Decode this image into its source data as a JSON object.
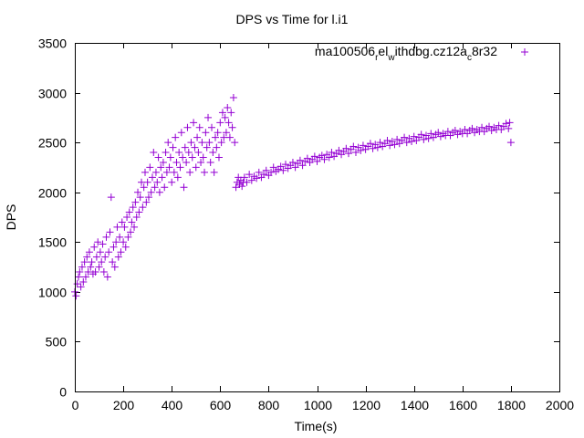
{
  "chart_data": {
    "type": "scatter",
    "title": "DPS vs Time for l.i1",
    "xlabel": "Time(s)",
    "ylabel": "DPS",
    "xlim": [
      0,
      2000
    ],
    "ylim": [
      0,
      3500
    ],
    "xticks": [
      0,
      200,
      400,
      600,
      800,
      1000,
      1200,
      1400,
      1600,
      1800,
      2000
    ],
    "yticks": [
      0,
      500,
      1000,
      1500,
      2000,
      2500,
      3000,
      3500
    ],
    "grid": false,
    "legend_position": "top-right",
    "series": [
      {
        "name": "ma100506",
        "name_parts": {
          "base": "ma100506",
          "sub1": "r",
          "mid1": "el",
          "sub2": "w",
          "mid2": "ithdbg.cz12a",
          "sub3": "c",
          "tail": "8r32"
        },
        "color": "#9400d3",
        "marker": "plus",
        "points": [
          [
            0,
            1000
          ],
          [
            5,
            960
          ],
          [
            10,
            1080
          ],
          [
            15,
            1150
          ],
          [
            20,
            1200
          ],
          [
            25,
            1050
          ],
          [
            30,
            1250
          ],
          [
            35,
            1100
          ],
          [
            40,
            1300
          ],
          [
            45,
            1150
          ],
          [
            50,
            1350
          ],
          [
            55,
            1200
          ],
          [
            60,
            1400
          ],
          [
            65,
            1250
          ],
          [
            70,
            1300
          ],
          [
            75,
            1180
          ],
          [
            80,
            1450
          ],
          [
            85,
            1200
          ],
          [
            90,
            1350
          ],
          [
            95,
            1500
          ],
          [
            100,
            1250
          ],
          [
            105,
            1400
          ],
          [
            110,
            1300
          ],
          [
            115,
            1480
          ],
          [
            120,
            1200
          ],
          [
            125,
            1350
          ],
          [
            130,
            1550
          ],
          [
            135,
            1150
          ],
          [
            140,
            1400
          ],
          [
            145,
            1600
          ],
          [
            150,
            1950
          ],
          [
            155,
            1300
          ],
          [
            160,
            1450
          ],
          [
            165,
            1250
          ],
          [
            170,
            1500
          ],
          [
            175,
            1650
          ],
          [
            180,
            1350
          ],
          [
            185,
            1550
          ],
          [
            190,
            1400
          ],
          [
            195,
            1700
          ],
          [
            200,
            1500
          ],
          [
            205,
            1650
          ],
          [
            210,
            1450
          ],
          [
            215,
            1750
          ],
          [
            220,
            1550
          ],
          [
            225,
            1800
          ],
          [
            230,
            1600
          ],
          [
            235,
            1700
          ],
          [
            240,
            1850
          ],
          [
            245,
            1650
          ],
          [
            250,
            1900
          ],
          [
            255,
            1750
          ],
          [
            260,
            2000
          ],
          [
            265,
            1800
          ],
          [
            270,
            1950
          ],
          [
            275,
            2100
          ],
          [
            280,
            1850
          ],
          [
            285,
            2050
          ],
          [
            290,
            2200
          ],
          [
            295,
            1900
          ],
          [
            300,
            2100
          ],
          [
            305,
            1950
          ],
          [
            310,
            2250
          ],
          [
            315,
            2000
          ],
          [
            320,
            2150
          ],
          [
            325,
            2400
          ],
          [
            330,
            2050
          ],
          [
            335,
            2200
          ],
          [
            340,
            2100
          ],
          [
            345,
            2350
          ],
          [
            350,
            2000
          ],
          [
            355,
            2250
          ],
          [
            360,
            2150
          ],
          [
            365,
            2300
          ],
          [
            370,
            2050
          ],
          [
            375,
            2400
          ],
          [
            380,
            2200
          ],
          [
            385,
            2500
          ],
          [
            390,
            2250
          ],
          [
            395,
            2350
          ],
          [
            400,
            2100
          ],
          [
            405,
            2450
          ],
          [
            410,
            2200
          ],
          [
            415,
            2550
          ],
          [
            420,
            2300
          ],
          [
            425,
            2150
          ],
          [
            430,
            2400
          ],
          [
            435,
            2250
          ],
          [
            440,
            2600
          ],
          [
            445,
            2350
          ],
          [
            450,
            2050
          ],
          [
            455,
            2450
          ],
          [
            460,
            2300
          ],
          [
            465,
            2650
          ],
          [
            470,
            2400
          ],
          [
            475,
            2200
          ],
          [
            480,
            2500
          ],
          [
            485,
            2350
          ],
          [
            490,
            2700
          ],
          [
            495,
            2450
          ],
          [
            500,
            2250
          ],
          [
            505,
            2550
          ],
          [
            510,
            2400
          ],
          [
            515,
            2650
          ],
          [
            520,
            2300
          ],
          [
            525,
            2500
          ],
          [
            530,
            2350
          ],
          [
            535,
            2200
          ],
          [
            540,
            2600
          ],
          [
            545,
            2450
          ],
          [
            550,
            2750
          ],
          [
            555,
            2500
          ],
          [
            560,
            2300
          ],
          [
            565,
            2650
          ],
          [
            570,
            2400
          ],
          [
            575,
            2200
          ],
          [
            580,
            2550
          ],
          [
            585,
            2450
          ],
          [
            590,
            2600
          ],
          [
            595,
            2350
          ],
          [
            600,
            2700
          ],
          [
            605,
            2500
          ],
          [
            610,
            2800
          ],
          [
            615,
            2550
          ],
          [
            620,
            2750
          ],
          [
            625,
            2600
          ],
          [
            630,
            2850
          ],
          [
            635,
            2700
          ],
          [
            640,
            2550
          ],
          [
            645,
            2800
          ],
          [
            650,
            2650
          ],
          [
            655,
            2950
          ],
          [
            660,
            2500
          ],
          [
            665,
            2050
          ],
          [
            670,
            2100
          ],
          [
            675,
            2150
          ],
          [
            680,
            2080
          ],
          [
            685,
            2120
          ],
          [
            690,
            2060
          ],
          [
            695,
            2100
          ],
          [
            700,
            2150
          ],
          [
            710,
            2100
          ],
          [
            720,
            2180
          ],
          [
            730,
            2120
          ],
          [
            740,
            2160
          ],
          [
            750,
            2140
          ],
          [
            760,
            2200
          ],
          [
            770,
            2150
          ],
          [
            780,
            2180
          ],
          [
            790,
            2220
          ],
          [
            800,
            2170
          ],
          [
            810,
            2200
          ],
          [
            820,
            2250
          ],
          [
            830,
            2210
          ],
          [
            840,
            2230
          ],
          [
            850,
            2260
          ],
          [
            860,
            2220
          ],
          [
            870,
            2280
          ],
          [
            880,
            2240
          ],
          [
            890,
            2270
          ],
          [
            900,
            2300
          ],
          [
            910,
            2250
          ],
          [
            920,
            2290
          ],
          [
            930,
            2320
          ],
          [
            940,
            2270
          ],
          [
            950,
            2310
          ],
          [
            960,
            2340
          ],
          [
            970,
            2300
          ],
          [
            980,
            2330
          ],
          [
            990,
            2360
          ],
          [
            1000,
            2310
          ],
          [
            1010,
            2350
          ],
          [
            1020,
            2370
          ],
          [
            1030,
            2330
          ],
          [
            1040,
            2380
          ],
          [
            1050,
            2350
          ],
          [
            1060,
            2400
          ],
          [
            1070,
            2360
          ],
          [
            1080,
            2390
          ],
          [
            1090,
            2420
          ],
          [
            1100,
            2380
          ],
          [
            1110,
            2410
          ],
          [
            1120,
            2440
          ],
          [
            1130,
            2390
          ],
          [
            1140,
            2430
          ],
          [
            1150,
            2460
          ],
          [
            1160,
            2400
          ],
          [
            1170,
            2450
          ],
          [
            1180,
            2420
          ],
          [
            1190,
            2470
          ],
          [
            1200,
            2430
          ],
          [
            1210,
            2460
          ],
          [
            1220,
            2490
          ],
          [
            1230,
            2440
          ],
          [
            1240,
            2480
          ],
          [
            1250,
            2450
          ],
          [
            1260,
            2500
          ],
          [
            1270,
            2460
          ],
          [
            1280,
            2490
          ],
          [
            1290,
            2520
          ],
          [
            1300,
            2470
          ],
          [
            1310,
            2510
          ],
          [
            1320,
            2480
          ],
          [
            1330,
            2530
          ],
          [
            1340,
            2490
          ],
          [
            1350,
            2520
          ],
          [
            1360,
            2550
          ],
          [
            1370,
            2500
          ],
          [
            1380,
            2540
          ],
          [
            1390,
            2510
          ],
          [
            1400,
            2560
          ],
          [
            1410,
            2520
          ],
          [
            1420,
            2550
          ],
          [
            1430,
            2580
          ],
          [
            1440,
            2530
          ],
          [
            1450,
            2570
          ],
          [
            1460,
            2540
          ],
          [
            1470,
            2590
          ],
          [
            1480,
            2550
          ],
          [
            1490,
            2580
          ],
          [
            1500,
            2600
          ],
          [
            1510,
            2560
          ],
          [
            1520,
            2590
          ],
          [
            1530,
            2570
          ],
          [
            1540,
            2610
          ],
          [
            1550,
            2570
          ],
          [
            1560,
            2600
          ],
          [
            1570,
            2620
          ],
          [
            1580,
            2580
          ],
          [
            1590,
            2610
          ],
          [
            1600,
            2590
          ],
          [
            1610,
            2630
          ],
          [
            1620,
            2590
          ],
          [
            1630,
            2620
          ],
          [
            1640,
            2640
          ],
          [
            1650,
            2600
          ],
          [
            1660,
            2630
          ],
          [
            1670,
            2610
          ],
          [
            1680,
            2650
          ],
          [
            1690,
            2610
          ],
          [
            1700,
            2640
          ],
          [
            1710,
            2660
          ],
          [
            1720,
            2620
          ],
          [
            1730,
            2650
          ],
          [
            1740,
            2630
          ],
          [
            1750,
            2670
          ],
          [
            1760,
            2630
          ],
          [
            1770,
            2660
          ],
          [
            1780,
            2690
          ],
          [
            1790,
            2640
          ],
          [
            1795,
            2700
          ],
          [
            1800,
            2500
          ]
        ]
      }
    ]
  }
}
